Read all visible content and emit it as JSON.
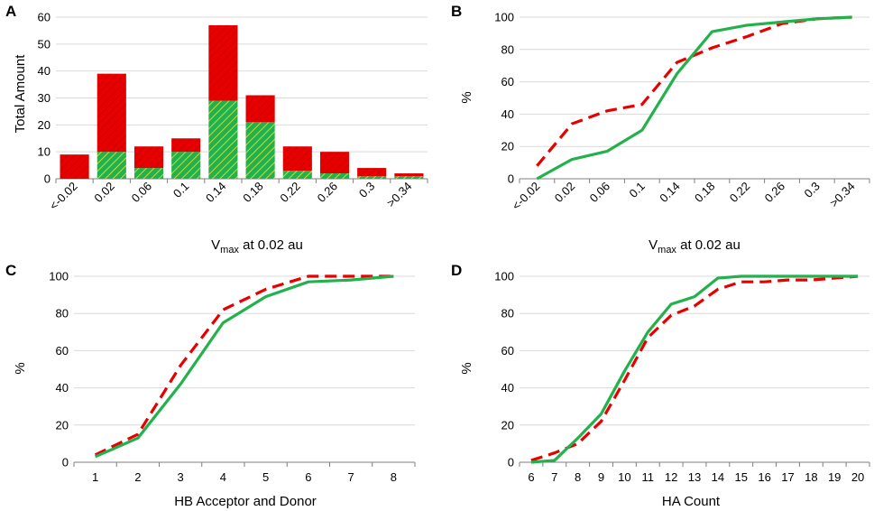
{
  "colors": {
    "red": "#e60000",
    "green": "#22b14c",
    "grid": "#d9d9d9",
    "axis": "#7f7f7f"
  },
  "chart_data": [
    {
      "id": "A",
      "type": "bar",
      "stacked": true,
      "panel_label": "A",
      "categories": [
        "<-0.02",
        "0.02",
        "0.06",
        "0.1",
        "0.14",
        "0.18",
        "0.22",
        "0.26",
        "0.3",
        ">0.34"
      ],
      "series": [
        {
          "name": "green (hatched)",
          "values": [
            0,
            10,
            4,
            10,
            29,
            21,
            3,
            2,
            1,
            1
          ]
        },
        {
          "name": "red (hatched)",
          "values": [
            9,
            29,
            8,
            5,
            28,
            10,
            9,
            8,
            3,
            1
          ]
        }
      ],
      "ylabel": "Total Amount",
      "xlabel_main": "V",
      "xlabel_sub": "max",
      "xlabel_rest": " at 0.02 au",
      "ylim": [
        0,
        60
      ],
      "yticks": [
        0,
        10,
        20,
        30,
        40,
        50,
        60
      ],
      "grid": true
    },
    {
      "id": "B",
      "type": "line",
      "panel_label": "B",
      "categories": [
        "<-0.02",
        "0.02",
        "0.06",
        "0.1",
        "0.14",
        "0.18",
        "0.22",
        "0.26",
        "0.3",
        ">0.34"
      ],
      "series": [
        {
          "name": "red dashed",
          "style": "dashed",
          "values": [
            8,
            34,
            42,
            46,
            72,
            81,
            88,
            96,
            99,
            100
          ]
        },
        {
          "name": "green solid",
          "style": "solid",
          "values": [
            0,
            12,
            17,
            30,
            65,
            91,
            95,
            97,
            99,
            100
          ]
        }
      ],
      "ylabel": "%",
      "xlabel_main": "V",
      "xlabel_sub": "max",
      "xlabel_rest": " at 0.02 au",
      "ylim": [
        0,
        100
      ],
      "yticks": [
        0,
        20,
        40,
        60,
        80,
        100
      ],
      "grid": true
    },
    {
      "id": "C",
      "type": "line",
      "panel_label": "C",
      "categories": [
        "1",
        "2",
        "3",
        "4",
        "5",
        "6",
        "7",
        "8"
      ],
      "series": [
        {
          "name": "red dashed",
          "style": "dashed",
          "values": [
            4,
            15,
            52,
            82,
            93,
            100,
            100,
            100
          ]
        },
        {
          "name": "green solid",
          "style": "solid",
          "values": [
            3,
            13,
            42,
            75,
            89,
            97,
            98,
            100
          ]
        }
      ],
      "xlabel": "HB Acceptor and Donor",
      "ylabel": "%",
      "ylim": [
        0,
        100
      ],
      "yticks": [
        0,
        20,
        40,
        60,
        80,
        100
      ],
      "grid": true
    },
    {
      "id": "D",
      "type": "line",
      "panel_label": "D",
      "categories": [
        "6",
        "7",
        "8",
        "9",
        "10",
        "11",
        "12",
        "13",
        "14",
        "15",
        "16",
        "17",
        "18",
        "19",
        "20"
      ],
      "series": [
        {
          "name": "red dashed",
          "style": "dashed",
          "values": [
            1,
            5,
            10,
            22,
            44,
            67,
            79,
            84,
            93,
            97,
            97,
            98,
            98,
            99,
            100
          ]
        },
        {
          "name": "green solid",
          "style": "solid",
          "values": [
            0,
            1,
            13,
            26,
            49,
            70,
            85,
            89,
            99,
            100,
            100,
            100,
            100,
            100,
            100
          ]
        }
      ],
      "xlabel": "HA Count",
      "ylabel": "%",
      "ylim": [
        0,
        100
      ],
      "yticks": [
        0,
        20,
        40,
        60,
        80,
        100
      ],
      "grid": true
    }
  ]
}
